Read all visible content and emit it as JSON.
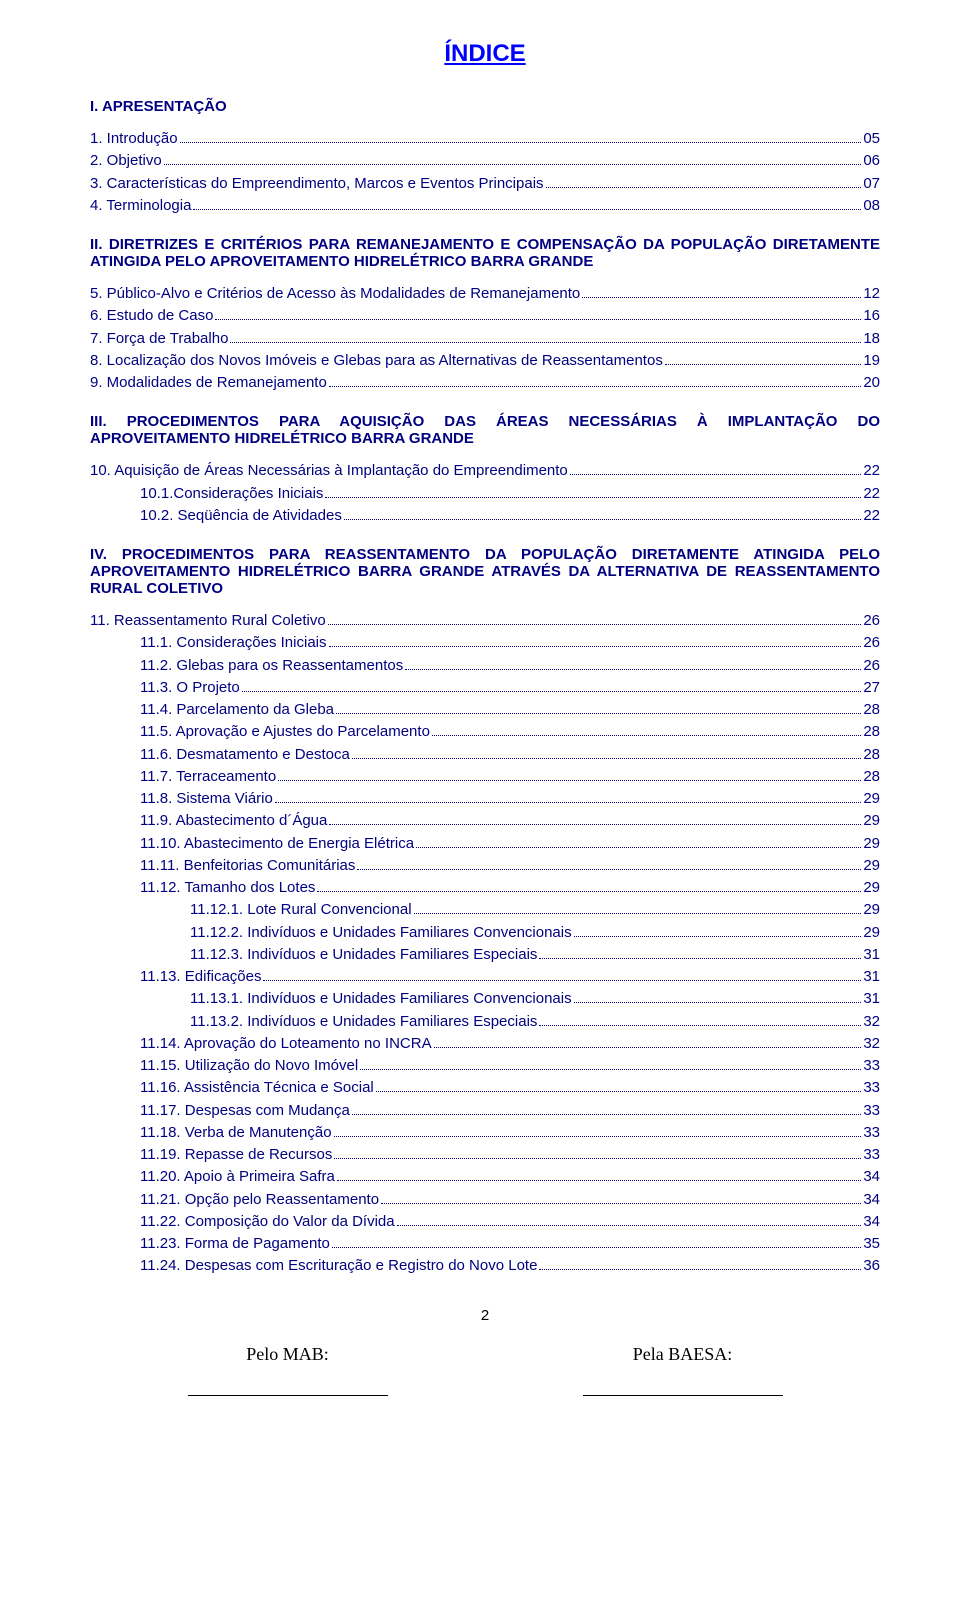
{
  "colors": {
    "title_color": "#0000ff",
    "text_color": "#000080",
    "page_color": "#ffffff",
    "footer_color": "#000000"
  },
  "typography": {
    "title_fontsize": 24,
    "body_fontsize": 15,
    "footer_fontsize": 18,
    "font_family": "Arial",
    "footer_font_family": "Times New Roman"
  },
  "title": "ÍNDICE",
  "section1": {
    "head": "I. APRESENTAÇÃO",
    "items": [
      {
        "label": "1. Introdução",
        "page": "05"
      },
      {
        "label": "2. Objetivo",
        "page": "06"
      },
      {
        "label": "3. Características do Empreendimento, Marcos e Eventos Principais",
        "page": "07"
      },
      {
        "label": "4. Terminologia",
        "page": "08"
      }
    ]
  },
  "section2": {
    "head": "II. DIRETRIZES E CRITÉRIOS PARA REMANEJAMENTO E COMPENSAÇÃO DA POPULAÇÃO DIRETAMENTE ATINGIDA PELO APROVEITAMENTO HIDRELÉTRICO BARRA GRANDE",
    "items": [
      {
        "label": "5. Público-Alvo e Critérios de Acesso às Modalidades de Remanejamento",
        "page": "12"
      },
      {
        "label": "6. Estudo de Caso",
        "page": "16"
      },
      {
        "label": "7. Força de Trabalho",
        "page": "18"
      },
      {
        "label": "8. Localização dos Novos Imóveis e Glebas para as Alternativas de Reassentamentos",
        "page": "19"
      },
      {
        "label": "9. Modalidades de Remanejamento",
        "page": "20"
      }
    ]
  },
  "section3": {
    "head": "III. PROCEDIMENTOS PARA AQUISIÇÃO DAS ÁREAS NECESSÁRIAS À IMPLANTAÇÃO DO APROVEITAMENTO HIDRELÉTRICO BARRA GRANDE",
    "items": [
      {
        "label": "10. Aquisição de Áreas Necessárias à Implantação do Empreendimento",
        "page": "22",
        "indent": 0
      },
      {
        "label": "10.1.Considerações Iniciais",
        "page": "22",
        "indent": 1
      },
      {
        "label": "10.2. Seqüência de Atividades",
        "page": "22",
        "indent": 1
      }
    ]
  },
  "section4": {
    "head": "IV. PROCEDIMENTOS PARA REASSENTAMENTO DA POPULAÇÃO DIRETAMENTE ATINGIDA PELO APROVEITAMENTO HIDRELÉTRICO BARRA GRANDE ATRAVÉS DA ALTERNATIVA DE REASSENTAMENTO RURAL COLETIVO",
    "items": [
      {
        "label": "11. Reassentamento Rural Coletivo",
        "page": "26",
        "indent": 0
      },
      {
        "label": "11.1. Considerações Iniciais",
        "page": "26",
        "indent": 1
      },
      {
        "label": "11.2. Glebas para os Reassentamentos",
        "page": "26",
        "indent": 1
      },
      {
        "label": "11.3. O Projeto",
        "page": "27",
        "indent": 1
      },
      {
        "label": "11.4. Parcelamento da Gleba",
        "page": "28",
        "indent": 1
      },
      {
        "label": "11.5. Aprovação e Ajustes do Parcelamento",
        "page": "28",
        "indent": 1
      },
      {
        "label": "11.6. Desmatamento e Destoca",
        "page": "28",
        "indent": 1
      },
      {
        "label": "11.7. Terraceamento",
        "page": "28",
        "indent": 1
      },
      {
        "label": "11.8. Sistema Viário",
        "page": "29",
        "indent": 1
      },
      {
        "label": "11.9. Abastecimento d´Água",
        "page": "29",
        "indent": 1
      },
      {
        "label": "11.10. Abastecimento de Energia Elétrica",
        "page": "29",
        "indent": 1
      },
      {
        "label": "11.11. Benfeitorias Comunitárias",
        "page": "29",
        "indent": 1
      },
      {
        "label": "11.12. Tamanho dos Lotes",
        "page": "29",
        "indent": 1
      },
      {
        "label": "11.12.1. Lote Rural Convencional",
        "page": "29",
        "indent": 2
      },
      {
        "label": "11.12.2. Indivíduos e Unidades Familiares Convencionais",
        "page": "29",
        "indent": 2
      },
      {
        "label": "11.12.3. Indivíduos e Unidades Familiares Especiais",
        "page": "31",
        "indent": 2
      },
      {
        "label": "11.13. Edificações",
        "page": "31",
        "indent": 1
      },
      {
        "label": "11.13.1. Indivíduos e Unidades Familiares Convencionais",
        "page": "31",
        "indent": 2
      },
      {
        "label": "11.13.2. Indivíduos e Unidades Familiares Especiais",
        "page": "32",
        "indent": 2
      },
      {
        "label": "11.14. Aprovação do Loteamento no INCRA",
        "page": "32",
        "indent": 1
      },
      {
        "label": "11.15. Utilização do Novo Imóvel",
        "page": "33",
        "indent": 1
      },
      {
        "label": "11.16. Assistência Técnica e Social",
        "page": "33",
        "indent": 1
      },
      {
        "label": "11.17. Despesas com Mudança",
        "page": "33",
        "indent": 1
      },
      {
        "label": "11.18. Verba de Manutenção",
        "page": "33",
        "indent": 1
      },
      {
        "label": "11.19. Repasse de Recursos",
        "page": "33",
        "indent": 1
      },
      {
        "label": "11.20. Apoio à Primeira Safra",
        "page": "34",
        "indent": 1
      },
      {
        "label": "11.21. Opção pelo Reassentamento",
        "page": "34",
        "indent": 1
      },
      {
        "label": "11.22. Composição do Valor da Dívida",
        "page": "34",
        "indent": 1
      },
      {
        "label": "11.23. Forma de Pagamento",
        "page": "35",
        "indent": 1
      },
      {
        "label": "11.24. Despesas com Escrituração e Registro do Novo Lote",
        "page": "36",
        "indent": 1
      }
    ]
  },
  "page_number": "2",
  "footer": {
    "left": "Pelo MAB:",
    "right": "Pela BAESA:"
  }
}
